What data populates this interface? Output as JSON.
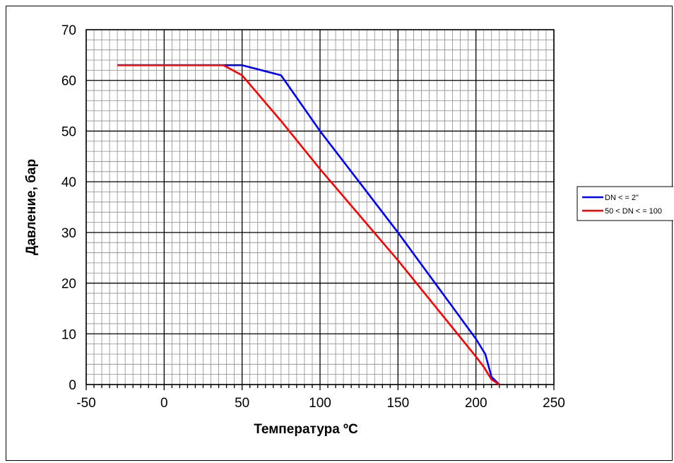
{
  "chart_data": {
    "type": "line",
    "xlabel": "Температура ºC",
    "ylabel": "Давление, бар",
    "xlim": [
      -50,
      250
    ],
    "ylim": [
      0,
      70
    ],
    "x_ticks": [
      "-50",
      "0",
      "50",
      "100",
      "150",
      "200",
      "250"
    ],
    "y_ticks": [
      "0",
      "10",
      "20",
      "30",
      "40",
      "50",
      "60",
      "70"
    ],
    "grid": true,
    "legend_position": "right",
    "series": [
      {
        "name": "DN < = 2\"",
        "color": "#0000ff",
        "x": [
          -30,
          0,
          50,
          75,
          100,
          125,
          150,
          175,
          200,
          206,
          210,
          215
        ],
        "y": [
          63,
          63,
          63,
          61,
          50,
          40,
          30,
          19.5,
          9,
          6,
          1.5,
          0
        ]
      },
      {
        "name": "50 < DN < = 100",
        "color": "#ff0000",
        "x": [
          -30,
          0,
          38,
          50,
          75,
          100,
          125,
          150,
          175,
          200,
          205,
          210,
          215
        ],
        "y": [
          63,
          63,
          63,
          61,
          52,
          42.5,
          33.5,
          24.5,
          15,
          5.5,
          3.5,
          1,
          0
        ]
      }
    ]
  }
}
